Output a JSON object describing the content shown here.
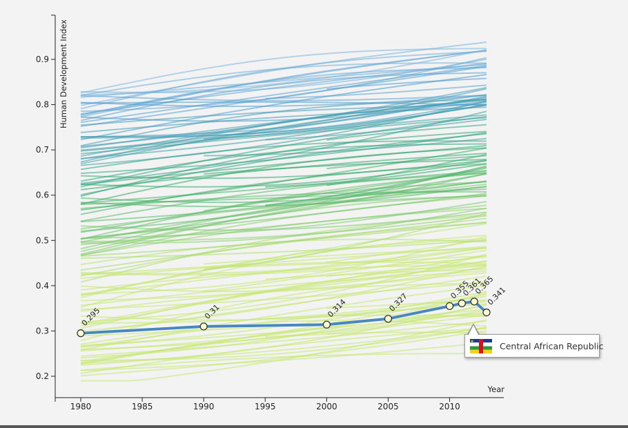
{
  "chart_data": {
    "type": "line",
    "title": "",
    "xlabel": "Year",
    "ylabel": "Human Development Index",
    "xlim": [
      1978,
      2014
    ],
    "ylim": [
      0.17,
      0.98
    ],
    "x_ticks": [
      1980,
      1985,
      1990,
      1995,
      2000,
      2005,
      2010
    ],
    "y_ticks": [
      0.2,
      0.3,
      0.4,
      0.5,
      0.6,
      0.7,
      0.8,
      0.9
    ],
    "y_tick_labels": [
      "0.2",
      "0.3",
      "0.4",
      "0.5",
      "0.6",
      "0.7",
      "0.8",
      "0.9"
    ],
    "x_tick_labels": [
      "1980",
      "1985",
      "1990",
      "1995",
      "2000",
      "2005",
      "2010"
    ],
    "background_series_count": 150,
    "background_range": [
      0.19,
      0.94
    ],
    "highlight": {
      "name": "Central African Republic",
      "x": [
        1980,
        1990,
        2000,
        2005,
        2010,
        2011,
        2012,
        2013
      ],
      "values": [
        0.295,
        0.31,
        0.314,
        0.327,
        0.355,
        0.361,
        0.365,
        0.341
      ],
      "labels": [
        "0.295",
        "0.31",
        "0.314",
        "0.327",
        "0.355",
        "0.361",
        "0.365",
        "0.341"
      ],
      "color": "#4a86c0"
    },
    "color_scale": [
      "#c6e86f",
      "#2fa86a",
      "#4a9acd",
      "#9cc6e6"
    ]
  },
  "tooltip": {
    "country": "Central African Republic",
    "flag": "central-african-republic-flag"
  }
}
